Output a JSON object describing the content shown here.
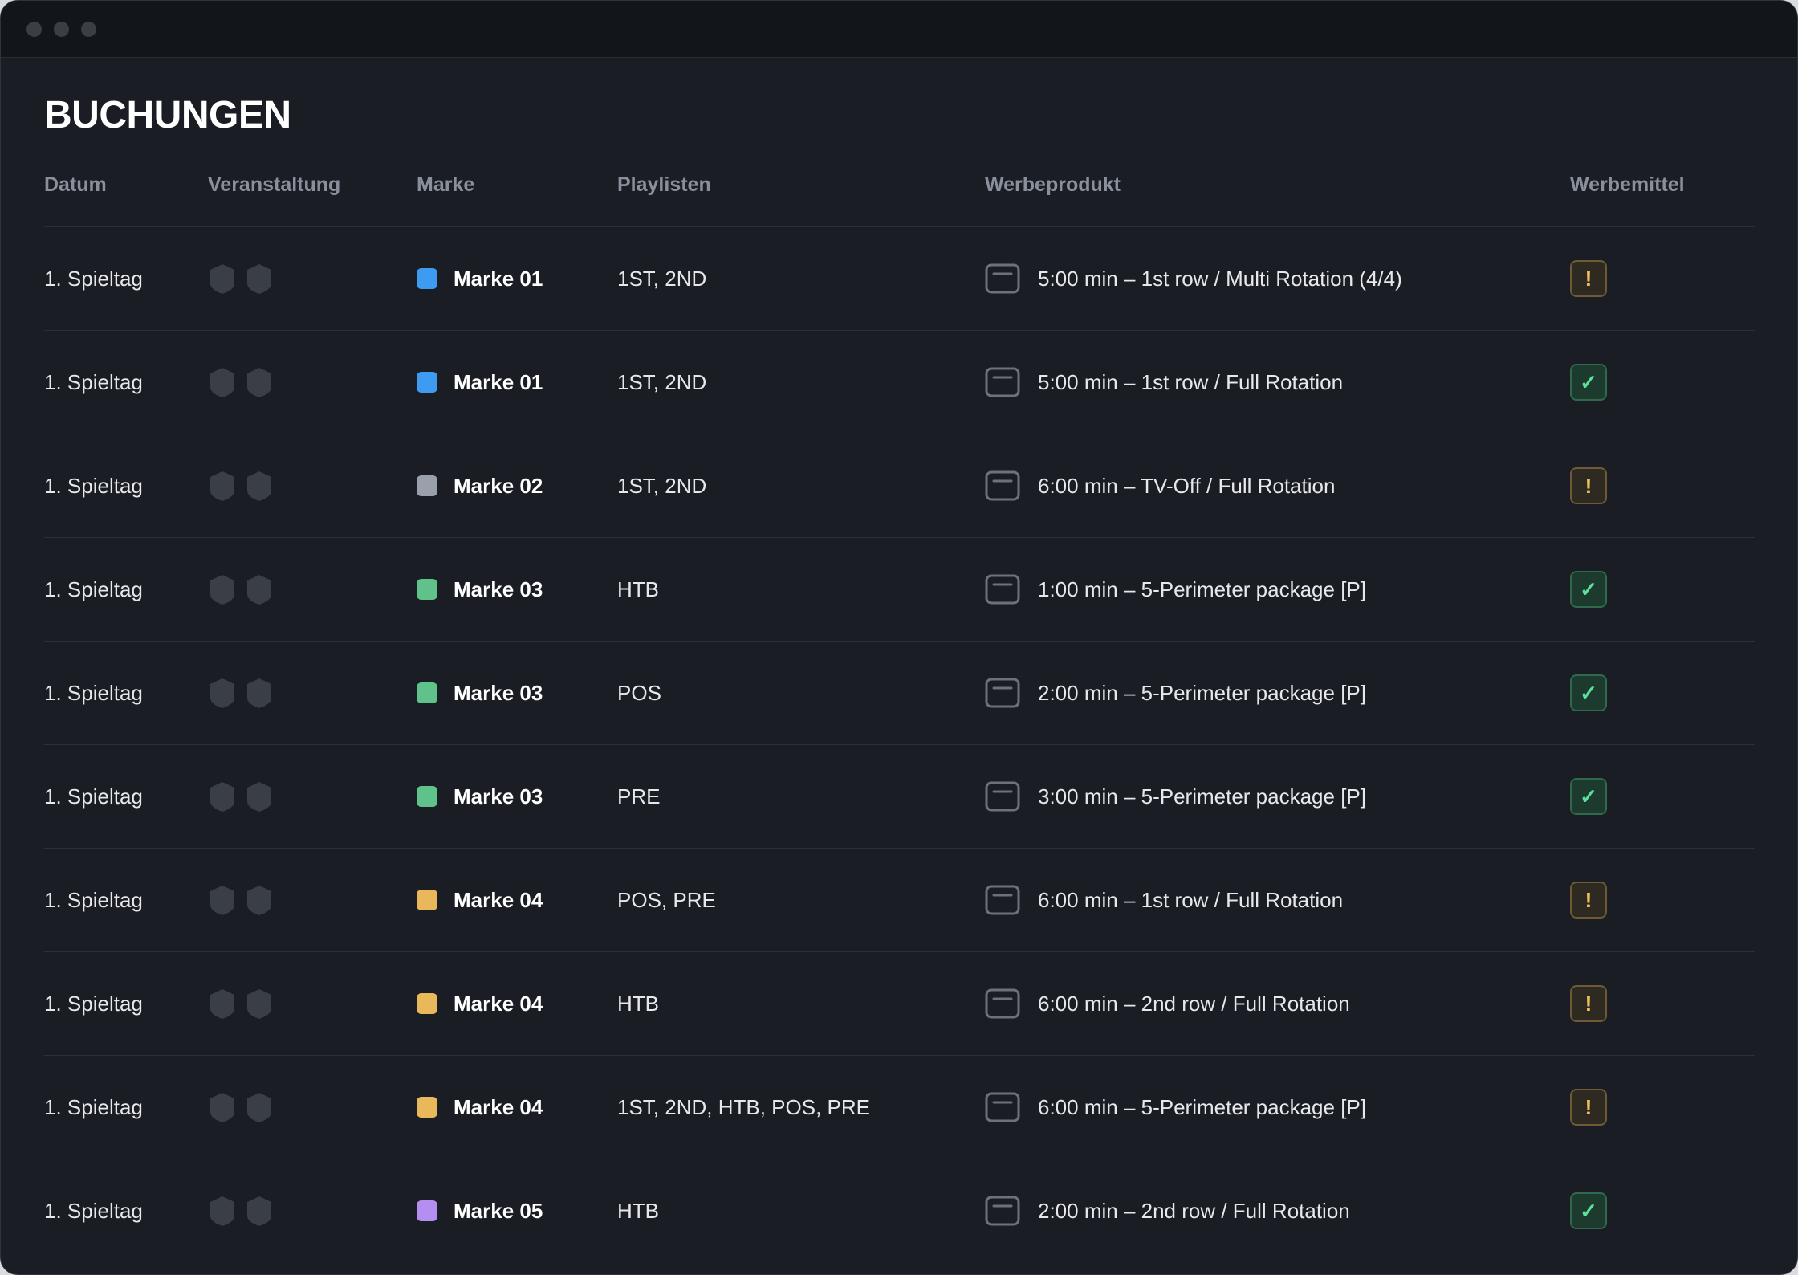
{
  "page": {
    "title": "BUCHUNGEN"
  },
  "columns": {
    "datum": "Datum",
    "veranstaltung": "Veranstaltung",
    "marke": "Marke",
    "playlisten": "Playlisten",
    "werbeprodukt": "Werbeprodukt",
    "werbemittel": "Werbemittel"
  },
  "colors": {
    "blue": "#3d9bf2",
    "gray": "#9aa0ab",
    "green": "#5fc28a",
    "yellow": "#e8b85a",
    "purple": "#b48ef0",
    "warning": "#f0c45a",
    "ok": "#5fe09a"
  },
  "status_glyphs": {
    "warning": "!",
    "ok": "✓"
  },
  "rows": [
    {
      "datum": "1. Spieltag",
      "marke": "Marke 01",
      "marke_color": "#3d9bf2",
      "playlisten": "1ST, 2ND",
      "werbeprodukt": "5:00 min – 1st row / Multi Rotation (4/4)",
      "status": "warning"
    },
    {
      "datum": "1. Spieltag",
      "marke": "Marke 01",
      "marke_color": "#3d9bf2",
      "playlisten": "1ST, 2ND",
      "werbeprodukt": "5:00 min – 1st row / Full Rotation",
      "status": "ok"
    },
    {
      "datum": "1. Spieltag",
      "marke": "Marke 02",
      "marke_color": "#9aa0ab",
      "playlisten": "1ST, 2ND",
      "werbeprodukt": "6:00 min – TV-Off / Full Rotation",
      "status": "warning"
    },
    {
      "datum": "1. Spieltag",
      "marke": "Marke 03",
      "marke_color": "#5fc28a",
      "playlisten": "HTB",
      "werbeprodukt": "1:00 min – 5-Perimeter package [P]",
      "status": "ok"
    },
    {
      "datum": "1. Spieltag",
      "marke": "Marke 03",
      "marke_color": "#5fc28a",
      "playlisten": "POS",
      "werbeprodukt": "2:00 min – 5-Perimeter package [P]",
      "status": "ok"
    },
    {
      "datum": "1. Spieltag",
      "marke": "Marke 03",
      "marke_color": "#5fc28a",
      "playlisten": "PRE",
      "werbeprodukt": "3:00 min – 5-Perimeter package [P]",
      "status": "ok"
    },
    {
      "datum": "1. Spieltag",
      "marke": "Marke 04",
      "marke_color": "#e8b85a",
      "playlisten": "POS, PRE",
      "werbeprodukt": "6:00 min – 1st row / Full Rotation",
      "status": "warning"
    },
    {
      "datum": "1. Spieltag",
      "marke": "Marke 04",
      "marke_color": "#e8b85a",
      "playlisten": "HTB",
      "werbeprodukt": "6:00 min – 2nd row / Full Rotation",
      "status": "warning"
    },
    {
      "datum": "1. Spieltag",
      "marke": "Marke 04",
      "marke_color": "#e8b85a",
      "playlisten": "1ST, 2ND, HTB, POS, PRE",
      "werbeprodukt": "6:00 min – 5-Perimeter package [P]",
      "status": "warning"
    },
    {
      "datum": "1. Spieltag",
      "marke": "Marke 05",
      "marke_color": "#b48ef0",
      "playlisten": "HTB",
      "werbeprodukt": "2:00 min – 2nd row / Full Rotation",
      "status": "ok"
    }
  ]
}
